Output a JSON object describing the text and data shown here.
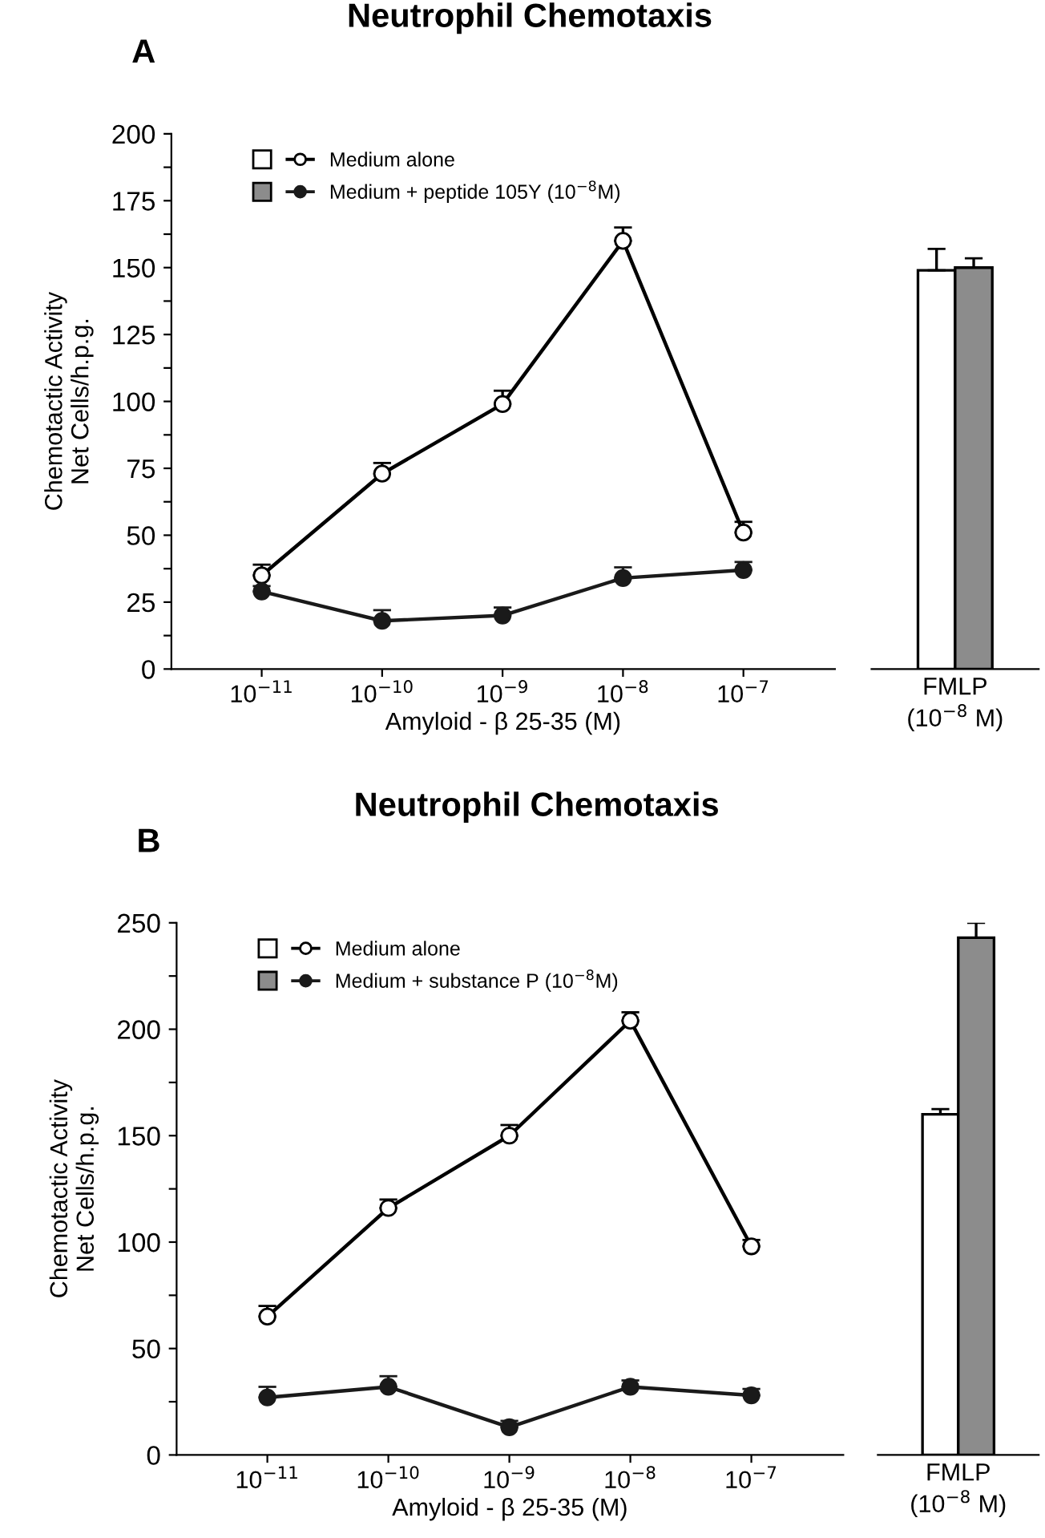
{
  "chart_data": [
    {
      "type": "line",
      "title": "Neutrophil Chemotaxis",
      "annotations": [
        "A"
      ],
      "xlabel": "Amyloid - β 25-35 (M)",
      "ylabel": "Chemotactic Activity\nNet Cells/h.p.g.",
      "categories": [
        "10$^{−11}$",
        "10$^{−10}$",
        "10$^{−9}$",
        "10$^{−8}$",
        "10$^{−7}$"
      ],
      "ylim": [
        0,
        200
      ],
      "yticks": [
        0,
        {
          "value": 12.5,
          "label": null
        },
        25,
        {
          "value": 37.5,
          "label": null
        },
        50,
        {
          "value": 62.5,
          "label": null
        },
        75,
        {
          "value": 87.5,
          "label": null
        },
        100,
        {
          "value": 112.5,
          "label": null
        },
        125,
        {
          "value": 137.5,
          "label": null
        },
        150,
        {
          "value": 162.5,
          "label": null
        },
        175,
        {
          "value": 187.5,
          "label": null
        },
        200
      ],
      "marker": "circle",
      "line_style": "solid",
      "legend": "top left",
      "series": [
        {
          "name": "Medium alone",
          "color": "#000000",
          "values": [
            35,
            73,
            99,
            160,
            51
          ],
          "errors": [
            [
              35,
              39
            ],
            [
              73,
              77
            ],
            [
              99,
              104
            ],
            [
              160,
              165
            ],
            [
              51,
              55
            ]
          ]
        },
        {
          "name": "Medium + peptide 105Y (10$^{−8}$M)",
          "color": "#1a1a1a",
          "values": [
            29,
            18,
            20,
            34,
            37
          ],
          "errors": [
            [
              29,
              31
            ],
            [
              18,
              22
            ],
            [
              20,
              23
            ],
            [
              34,
              38
            ],
            [
              37,
              40
            ]
          ]
        }
      ]
    },
    {
      "type": "bar",
      "categories": [
        "FMLP\n(10$^{−8}$ M)"
      ],
      "ylim": [
        0,
        200
      ],
      "tick_labels": "x",
      "series": [
        {
          "color": "#ffffff",
          "values": [
            149
          ],
          "errors": [
            [
              149,
              157
            ]
          ]
        },
        {
          "color": "#8c8c8c",
          "values": [
            150
          ],
          "errors": [
            [
              150,
              153.5
            ]
          ]
        }
      ]
    },
    {
      "type": "line",
      "title": "Neutrophil Chemotaxis",
      "annotations": [
        "B"
      ],
      "xlabel": "Amyloid - β 25-35 (M)",
      "ylabel": "Chemotactic Activity\nNet Cells/h.p.g.",
      "categories": [
        "10$^{−11}$",
        "10$^{−10}$",
        "10$^{−9}$",
        "10$^{−8}$",
        "10$^{−7}$"
      ],
      "ylim": [
        0,
        250
      ],
      "yticks": [
        0,
        {
          "value": 25,
          "label": null
        },
        50,
        {
          "value": 75,
          "label": null
        },
        100,
        {
          "value": 125,
          "label": null
        },
        150,
        {
          "value": 175,
          "label": null
        },
        200,
        {
          "value": 225,
          "label": null
        },
        250
      ],
      "marker": "circle",
      "line_style": "solid",
      "legend": "top left",
      "series": [
        {
          "name": "Medium alone",
          "color": "#000000",
          "values": [
            65,
            116,
            150,
            204,
            98
          ],
          "errors": [
            [
              65,
              70
            ],
            [
              116,
              120
            ],
            [
              150,
              155
            ],
            [
              204,
              208
            ],
            [
              98,
              101
            ]
          ]
        },
        {
          "name": "Medium + substance P (10$^{−8}$M)",
          "color": "#1a1a1a",
          "values": [
            27,
            32,
            13,
            32,
            28
          ],
          "errors": [
            [
              27,
              32
            ],
            [
              32,
              37
            ],
            [
              13,
              16
            ],
            [
              32,
              35
            ],
            [
              28,
              31
            ]
          ]
        }
      ]
    },
    {
      "type": "bar",
      "categories": [
        "FMLP\n(10$^{−8}$ M)"
      ],
      "ylim": [
        0,
        250
      ],
      "tick_labels": "x",
      "series": [
        {
          "color": "#ffffff",
          "values": [
            160
          ],
          "errors": [
            [
              160,
              162.5
            ]
          ]
        },
        {
          "color": "#8c8c8c",
          "values": [
            243
          ],
          "errors": [
            [
              243,
              250
            ]
          ]
        }
      ]
    }
  ]
}
